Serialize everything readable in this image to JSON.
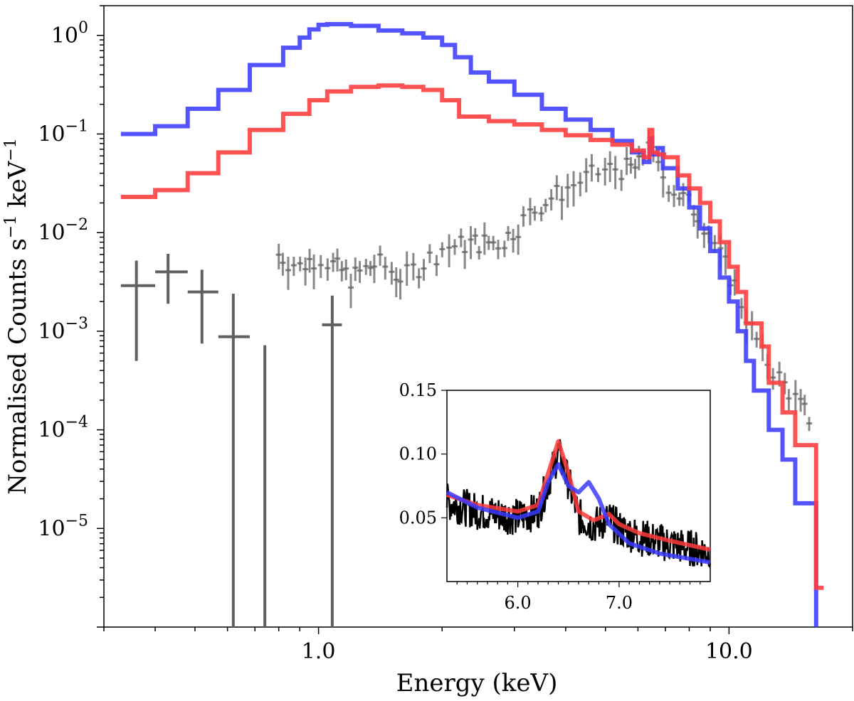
{
  "chart_data": {
    "type": "line",
    "title": "",
    "xlabel": "Energy (keV)",
    "ylabel": "Normalised Counts s⁻¹ keV⁻¹",
    "ylabel_parts": {
      "main": "Normalised Counts s",
      "sup1": "−1",
      "mid": " keV",
      "sup2": "−1"
    },
    "xscale": "log",
    "yscale": "log",
    "xlim": [
      0.3,
      20
    ],
    "ylim": [
      1e-06,
      2.0
    ],
    "x_ticks": [
      {
        "value": 1.0,
        "label": "1.0"
      },
      {
        "value": 10.0,
        "label": "10.0"
      }
    ],
    "y_ticks": [
      {
        "value": 1,
        "base": "10",
        "exp": "0"
      },
      {
        "value": 0.1,
        "base": "10",
        "exp": "−1"
      },
      {
        "value": 0.01,
        "base": "10",
        "exp": "−2"
      },
      {
        "value": 0.001,
        "base": "10",
        "exp": "−3"
      },
      {
        "value": 0.0001,
        "base": "10",
        "exp": "−4"
      },
      {
        "value": 1e-05,
        "base": "10",
        "exp": "−5"
      }
    ],
    "series": [
      {
        "name": "blue model",
        "color": "#3b3bff",
        "style": "step",
        "points": [
          [
            0.33,
            0.1
          ],
          [
            0.4,
            0.12
          ],
          [
            0.48,
            0.18
          ],
          [
            0.57,
            0.28
          ],
          [
            0.68,
            0.5
          ],
          [
            0.82,
            0.75
          ],
          [
            0.9,
            0.95
          ],
          [
            0.95,
            1.15
          ],
          [
            1.0,
            1.28
          ],
          [
            1.05,
            1.3
          ],
          [
            1.2,
            1.25
          ],
          [
            1.4,
            1.12
          ],
          [
            1.6,
            1.05
          ],
          [
            1.8,
            0.95
          ],
          [
            2.0,
            0.8
          ],
          [
            2.15,
            0.6
          ],
          [
            2.35,
            0.42
          ],
          [
            2.6,
            0.34
          ],
          [
            3.0,
            0.25
          ],
          [
            3.5,
            0.18
          ],
          [
            4.0,
            0.14
          ],
          [
            4.6,
            0.11
          ],
          [
            5.2,
            0.085
          ],
          [
            5.8,
            0.065
          ],
          [
            6.2,
            0.052
          ],
          [
            6.4,
            0.09
          ],
          [
            6.5,
            0.062
          ],
          [
            6.7,
            0.072
          ],
          [
            6.9,
            0.045
          ],
          [
            7.5,
            0.028
          ],
          [
            8.0,
            0.018
          ],
          [
            8.5,
            0.011
          ],
          [
            9.0,
            0.0065
          ],
          [
            9.5,
            0.0035
          ],
          [
            10.0,
            0.002
          ],
          [
            10.5,
            0.001
          ],
          [
            11.0,
            0.0005
          ],
          [
            11.5,
            0.00025
          ],
          [
            12.5,
            0.0001
          ],
          [
            13.5,
            5e-05
          ],
          [
            14.5,
            1.8e-05
          ],
          [
            16.3,
            1.4e-05
          ],
          [
            16.3,
            5e-07
          ]
        ]
      },
      {
        "name": "red model",
        "color": "#ff3b3b",
        "style": "step",
        "points": [
          [
            0.33,
            0.023
          ],
          [
            0.4,
            0.027
          ],
          [
            0.48,
            0.04
          ],
          [
            0.57,
            0.065
          ],
          [
            0.68,
            0.11
          ],
          [
            0.82,
            0.16
          ],
          [
            0.95,
            0.22
          ],
          [
            1.05,
            0.27
          ],
          [
            1.2,
            0.3
          ],
          [
            1.4,
            0.31
          ],
          [
            1.6,
            0.3
          ],
          [
            1.8,
            0.28
          ],
          [
            2.0,
            0.22
          ],
          [
            2.2,
            0.15
          ],
          [
            2.6,
            0.135
          ],
          [
            3.0,
            0.125
          ],
          [
            3.5,
            0.11
          ],
          [
            4.0,
            0.097
          ],
          [
            4.6,
            0.087
          ],
          [
            5.2,
            0.078
          ],
          [
            5.8,
            0.068
          ],
          [
            6.2,
            0.058
          ],
          [
            6.4,
            0.11
          ],
          [
            6.5,
            0.065
          ],
          [
            6.7,
            0.062
          ],
          [
            6.95,
            0.058
          ],
          [
            7.5,
            0.038
          ],
          [
            8.0,
            0.028
          ],
          [
            8.5,
            0.02
          ],
          [
            9.0,
            0.013
          ],
          [
            9.5,
            0.008
          ],
          [
            10.0,
            0.0045
          ],
          [
            10.5,
            0.0025
          ],
          [
            11.0,
            0.0012
          ],
          [
            12.0,
            0.0007
          ],
          [
            12.5,
            0.0003
          ],
          [
            13.5,
            0.00015
          ],
          [
            14.5,
            7e-05
          ],
          [
            16.3,
            7e-05
          ],
          [
            16.3,
            2.5e-06
          ],
          [
            17.0,
            2.5e-06
          ]
        ]
      }
    ],
    "data_points": {
      "name": "observed spectrum",
      "color": "#606060",
      "points": [
        {
          "x": 0.36,
          "y": 0.0029,
          "xl": 0.33,
          "xh": 0.4,
          "yl": 0.0005,
          "yh": 0.0052
        },
        {
          "x": 0.43,
          "y": 0.004,
          "xl": 0.4,
          "xh": 0.48,
          "yl": 0.0019,
          "yh": 0.0061
        },
        {
          "x": 0.52,
          "y": 0.0025,
          "xl": 0.48,
          "xh": 0.57,
          "yl": 0.00075,
          "yh": 0.0042
        },
        {
          "x": 0.62,
          "y": 0.00088,
          "xl": 0.57,
          "xh": 0.68,
          "yl": 1e-06,
          "yh": 0.0024
        },
        {
          "x": 0.74,
          "y": 1.1e-06,
          "xl": 0.74,
          "xh": 0.74,
          "yl": 1e-06,
          "yh": 0.00072
        },
        {
          "x": 1.08,
          "y": 0.00116,
          "xl": 1.02,
          "xh": 1.14,
          "yl": 1e-06,
          "yh": 0.0023
        }
      ],
      "dense_range": [
        0.8,
        16
      ],
      "dense_trend": [
        [
          0.8,
          0.006
        ],
        [
          0.9,
          0.0045
        ],
        [
          1.0,
          0.006
        ],
        [
          1.2,
          0.0035
        ],
        [
          1.4,
          0.005
        ],
        [
          1.6,
          0.0035
        ],
        [
          1.8,
          0.005
        ],
        [
          2.0,
          0.007
        ],
        [
          2.4,
          0.008
        ],
        [
          2.8,
          0.008
        ],
        [
          3.0,
          0.011
        ],
        [
          3.5,
          0.02
        ],
        [
          4.0,
          0.028
        ],
        [
          4.6,
          0.038
        ],
        [
          5.2,
          0.045
        ],
        [
          6.0,
          0.045
        ],
        [
          6.4,
          0.1
        ],
        [
          6.6,
          0.05
        ],
        [
          7.0,
          0.035
        ],
        [
          7.5,
          0.025
        ],
        [
          8.0,
          0.02
        ],
        [
          8.5,
          0.015
        ],
        [
          9.0,
          0.01
        ],
        [
          9.5,
          0.006
        ],
        [
          10.0,
          0.004
        ],
        [
          10.5,
          0.0025
        ],
        [
          11.0,
          0.0015
        ],
        [
          12.0,
          0.0006
        ],
        [
          16.5,
          0.0001
        ]
      ]
    },
    "inset": {
      "xlim": [
        5.3,
        7.9
      ],
      "ylim": [
        0.0,
        0.15
      ],
      "x_ticks": [
        {
          "value": 6.0,
          "label": "6.0"
        },
        {
          "value": 7.0,
          "label": "7.0"
        }
      ],
      "y_ticks": [
        {
          "value": 0.05,
          "label": "0.05"
        },
        {
          "value": 0.1,
          "label": "0.10"
        },
        {
          "value": 0.15,
          "label": "0.15"
        }
      ],
      "series": [
        {
          "name": "red model",
          "color": "#ff3b3b",
          "points": [
            [
              5.3,
              0.068
            ],
            [
              5.6,
              0.06
            ],
            [
              6.0,
              0.055
            ],
            [
              6.2,
              0.06
            ],
            [
              6.3,
              0.085
            ],
            [
              6.4,
              0.11
            ],
            [
              6.5,
              0.085
            ],
            [
              6.6,
              0.055
            ],
            [
              6.75,
              0.048
            ],
            [
              6.9,
              0.053
            ],
            [
              7.0,
              0.045
            ],
            [
              7.2,
              0.038
            ],
            [
              7.5,
              0.032
            ],
            [
              7.9,
              0.025
            ]
          ]
        },
        {
          "name": "blue model",
          "color": "#3b3bff",
          "points": [
            [
              5.3,
              0.07
            ],
            [
              5.6,
              0.058
            ],
            [
              6.0,
              0.05
            ],
            [
              6.2,
              0.055
            ],
            [
              6.3,
              0.078
            ],
            [
              6.4,
              0.092
            ],
            [
              6.5,
              0.075
            ],
            [
              6.6,
              0.07
            ],
            [
              6.7,
              0.078
            ],
            [
              6.8,
              0.065
            ],
            [
              6.9,
              0.045
            ],
            [
              7.1,
              0.03
            ],
            [
              7.4,
              0.022
            ],
            [
              7.9,
              0.015
            ]
          ]
        }
      ]
    }
  }
}
